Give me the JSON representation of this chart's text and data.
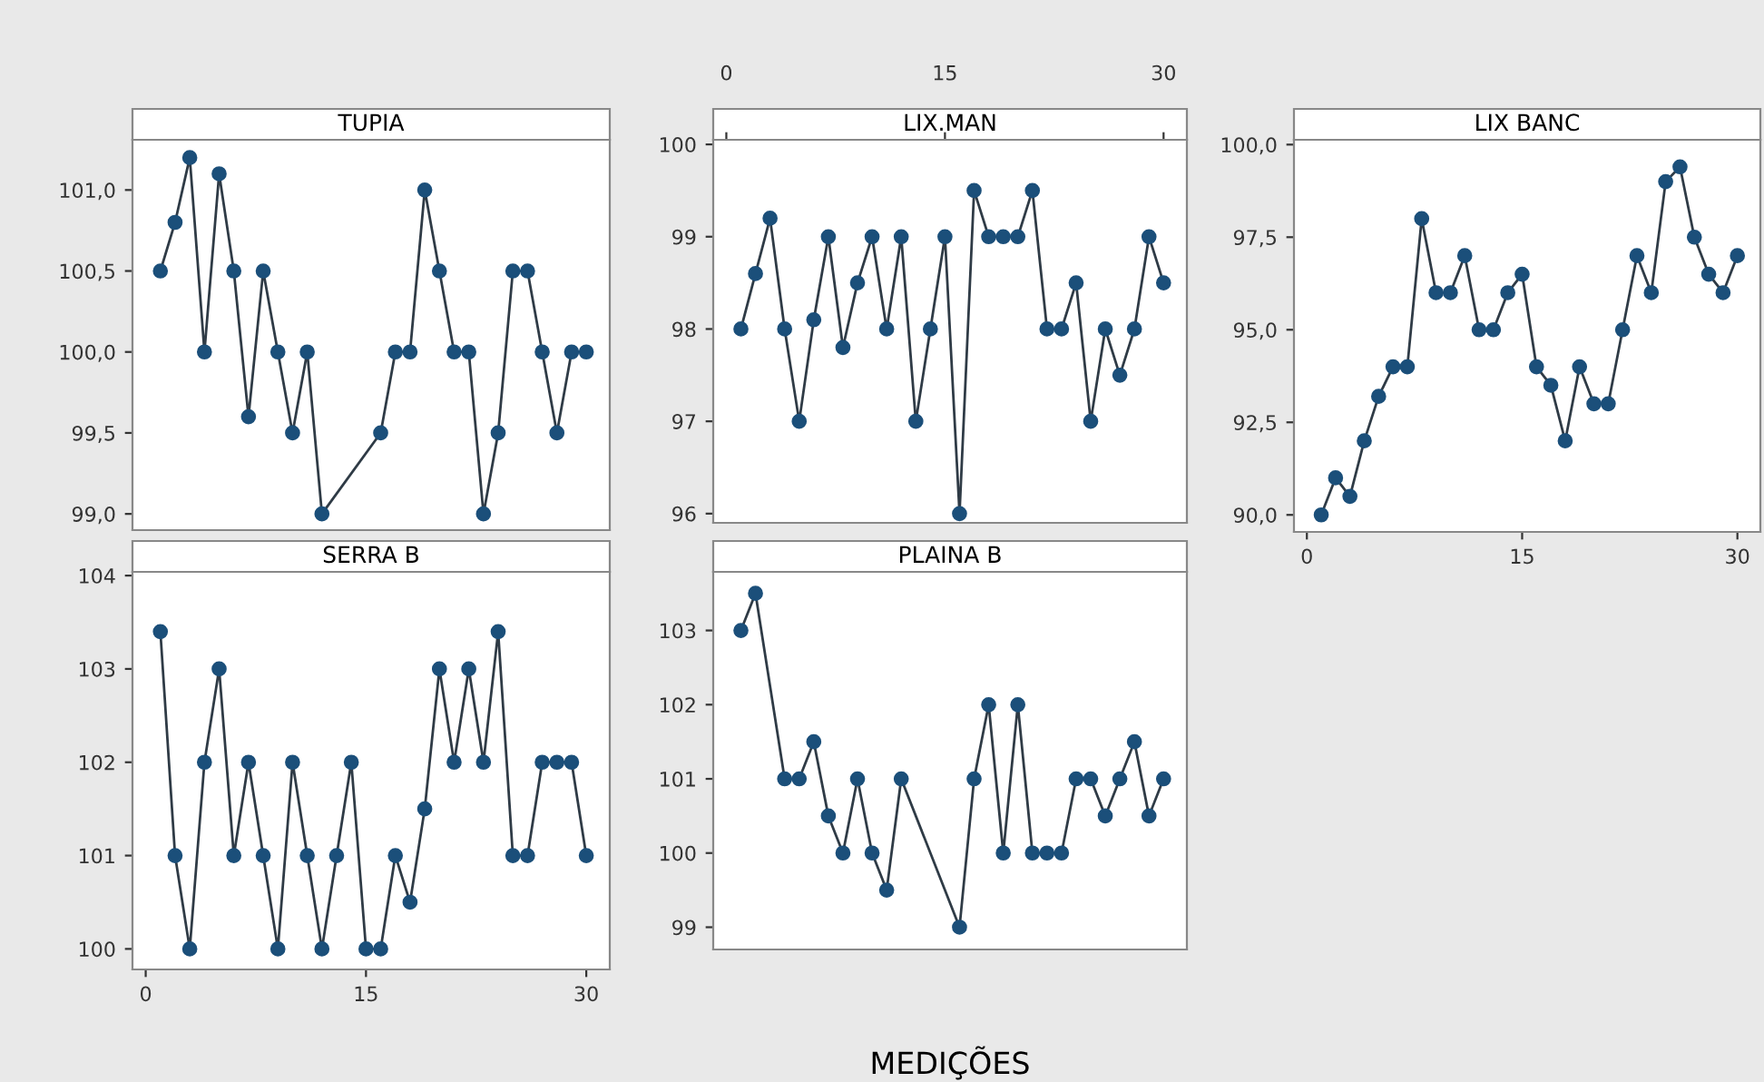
{
  "chart_data": [
    {
      "type": "line",
      "title": "TUPIA",
      "marker": "circle",
      "tick_labels": "y",
      "xlim": [
        -0.9,
        31.6
      ],
      "xticks": [
        0,
        15,
        30
      ],
      "ylim": [
        98.9,
        101.31
      ],
      "yticks": [
        {
          "value": 99.0,
          "label": "99,0"
        },
        {
          "value": 99.5,
          "label": "99,5"
        },
        {
          "value": 100.0,
          "label": "100,0"
        },
        {
          "value": 100.5,
          "label": "100,5"
        },
        {
          "value": 101.0,
          "label": "101,0"
        }
      ],
      "series": [
        {
          "color": "#1b4f7a",
          "x": [
            1,
            2,
            3,
            4,
            5,
            6,
            7,
            8,
            9,
            10,
            11,
            12,
            16,
            17,
            18,
            19,
            20,
            21,
            22,
            23,
            24,
            25,
            26,
            27,
            28,
            29,
            30
          ],
          "values": [
            100.5,
            100.8,
            101.2,
            100.0,
            101.1,
            100.5,
            99.6,
            100.5,
            100.0,
            99.5,
            100.0,
            99.0,
            99.5,
            100.0,
            100.0,
            101.0,
            100.5,
            100.0,
            100.0,
            99.0,
            99.5,
            100.5,
            100.5,
            100.0,
            99.5,
            100.0,
            100.0
          ]
        }
      ]
    },
    {
      "type": "line",
      "title": "LIX.MAN",
      "marker": "circle",
      "xlim": [
        -0.9,
        31.6
      ],
      "xticks": [
        0,
        15,
        30
      ],
      "ylim": [
        95.9,
        100.05
      ],
      "yticks": [
        96,
        97,
        98,
        99,
        100
      ],
      "series": [
        {
          "color": "#1b4f7a",
          "x": [
            1,
            2,
            3,
            4,
            5,
            6,
            7,
            8,
            9,
            10,
            11,
            12,
            13,
            14,
            15,
            16,
            17,
            18,
            19,
            20,
            21,
            22,
            23,
            24,
            25,
            26,
            27,
            28,
            29,
            30
          ],
          "values": [
            98,
            98.6,
            99.2,
            98,
            97,
            98.1,
            99,
            97.8,
            98.5,
            99,
            98,
            99,
            97,
            98,
            99,
            96,
            99.5,
            99,
            99,
            99,
            99.5,
            98,
            98,
            98.5,
            97,
            98,
            97.5,
            98,
            99,
            98.5
          ]
        }
      ]
    },
    {
      "type": "line",
      "title": "LIX BANC",
      "marker": "circle",
      "xlim": [
        -0.9,
        31.6
      ],
      "xticks": [
        0,
        15,
        30
      ],
      "ylim": [
        89.54,
        100.13
      ],
      "yticks": [
        {
          "value": 90.0,
          "label": "90,0"
        },
        {
          "value": 92.5,
          "label": "92,5"
        },
        {
          "value": 95.0,
          "label": "95,0"
        },
        {
          "value": 97.5,
          "label": "97,5"
        },
        {
          "value": 100.0,
          "label": "100,0"
        }
      ],
      "series": [
        {
          "color": "#1b4f7a",
          "x": [
            1,
            2,
            3,
            4,
            5,
            6,
            7,
            8,
            9,
            10,
            11,
            12,
            13,
            14,
            15,
            16,
            17,
            18,
            19,
            20,
            21,
            22,
            23,
            24,
            25,
            26,
            27,
            28,
            29,
            30
          ],
          "values": [
            90,
            91,
            90.5,
            92,
            93.2,
            94,
            94,
            98,
            96,
            96,
            97,
            95,
            95,
            96,
            96.5,
            94,
            93.5,
            92,
            94,
            93,
            93,
            95,
            97,
            96,
            99,
            99.4,
            97.5,
            96.5,
            96,
            97
          ]
        }
      ]
    },
    {
      "type": "line",
      "title": "SERRA B",
      "marker": "circle",
      "xlim": [
        -0.9,
        31.6
      ],
      "xticks": [
        0,
        15,
        30
      ],
      "ylim": [
        99.78,
        104.04
      ],
      "yticks": [
        100,
        101,
        102,
        103,
        104
      ],
      "series": [
        {
          "color": "#1b4f7a",
          "x": [
            1,
            2,
            3,
            4,
            5,
            6,
            7,
            8,
            9,
            10,
            11,
            12,
            13,
            14,
            15,
            16,
            17,
            18,
            19,
            20,
            21,
            22,
            23,
            24,
            25,
            26,
            27,
            28,
            29,
            30
          ],
          "values": [
            103.4,
            101,
            100,
            102,
            103,
            101,
            102,
            101,
            100,
            102,
            101,
            100,
            101,
            102,
            100,
            100,
            101,
            100.5,
            101.5,
            103,
            102,
            103,
            102,
            103.4,
            101,
            101,
            102,
            102,
            102,
            101
          ]
        }
      ]
    },
    {
      "type": "line",
      "title": "PLAINA B",
      "xlabel": "MEDIÇÕES",
      "marker": "circle",
      "tick_labels": "y",
      "xlim": [
        -0.9,
        31.6
      ],
      "xticks": [
        0,
        15,
        30
      ],
      "ylim": [
        98.7,
        103.79
      ],
      "yticks": [
        99,
        100,
        101,
        102,
        103
      ],
      "series": [
        {
          "color": "#1b4f7a",
          "x": [
            1,
            2,
            4,
            5,
            6,
            7,
            8,
            9,
            10,
            11,
            12,
            16,
            17,
            18,
            19,
            20,
            21,
            22,
            23,
            24,
            25,
            26,
            27,
            28,
            29,
            30
          ],
          "values": [
            103,
            103.5,
            101,
            101,
            101.5,
            100.5,
            100,
            101,
            100,
            99.5,
            101,
            99,
            101,
            102,
            100,
            102,
            100,
            100,
            100,
            101,
            101,
            100.5,
            101,
            101.5,
            100.5,
            101
          ]
        }
      ]
    }
  ]
}
